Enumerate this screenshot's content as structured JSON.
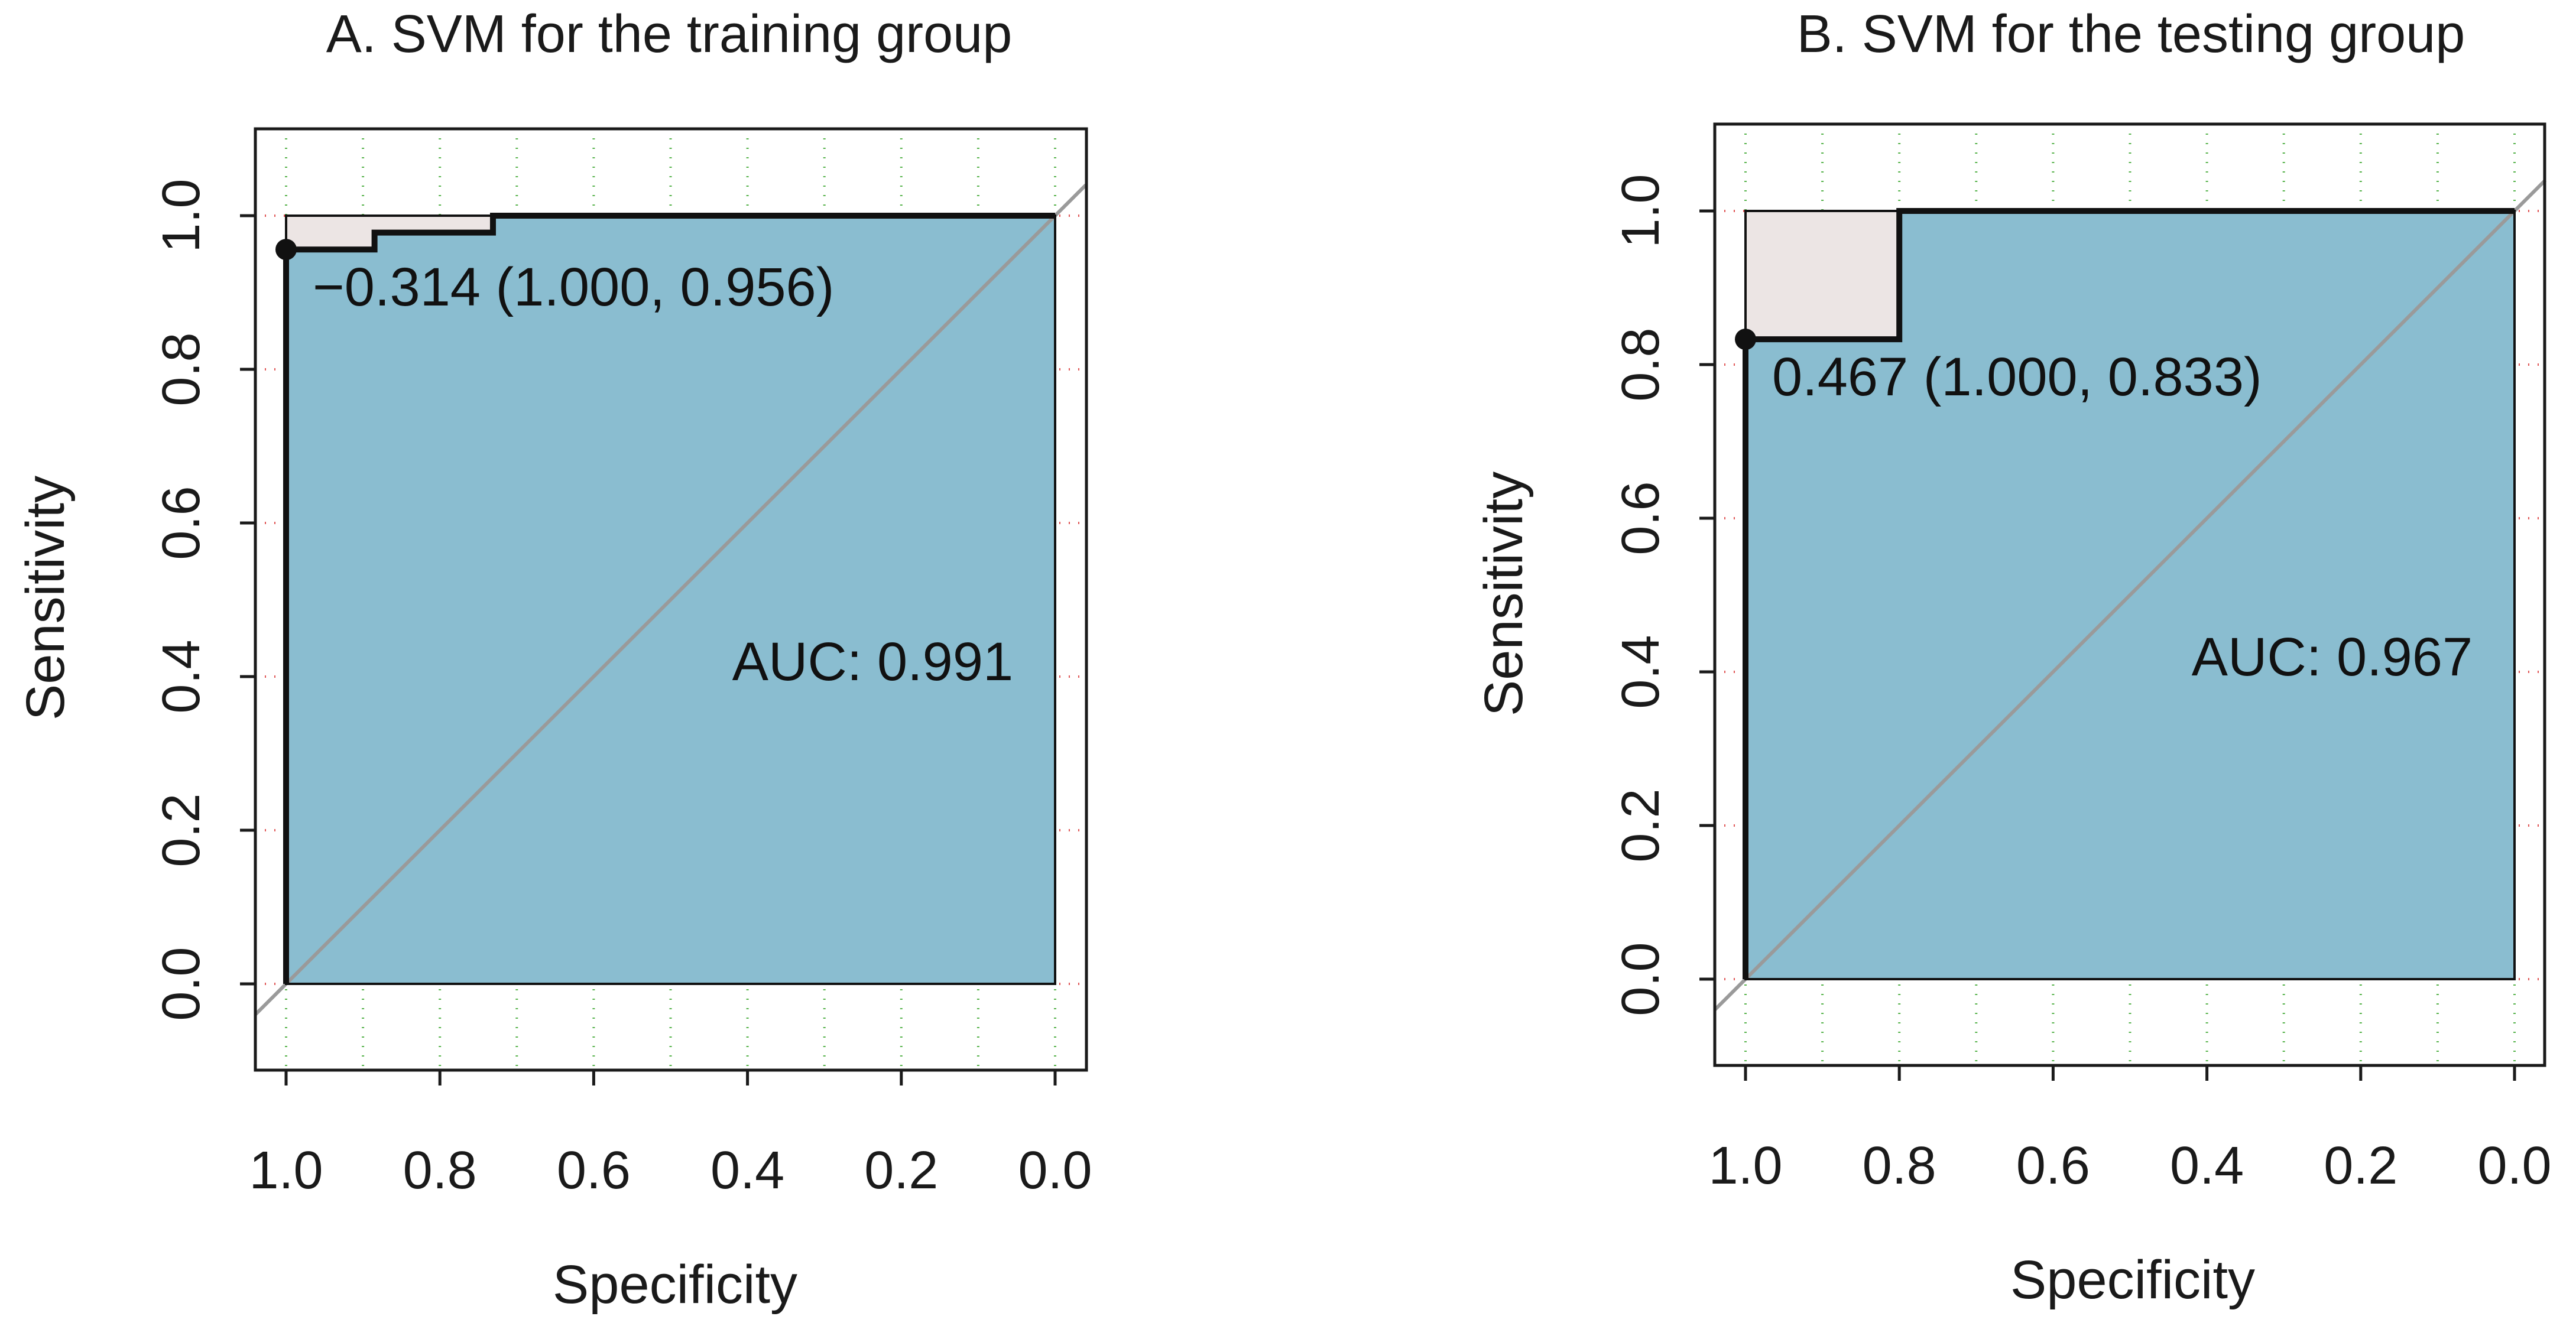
{
  "chart_data": [
    {
      "type": "roc",
      "title": "A. SVM for the training group",
      "xlabel": "Specificity",
      "ylabel": "Sensitivity",
      "xlim": [
        1.0,
        0.0
      ],
      "ylim": [
        0.0,
        1.0
      ],
      "x_reversed": true,
      "xticks": [
        "1.0",
        "0.8",
        "0.6",
        "0.4",
        "0.2",
        "0.0"
      ],
      "yticks": [
        "0.0",
        "0.2",
        "0.4",
        "0.6",
        "0.8",
        "1.0"
      ],
      "grid": true,
      "roc_curve": {
        "specificity": [
          1.0,
          1.0,
          0.885,
          0.885,
          0.731,
          0.731,
          0.0
        ],
        "sensitivity": [
          0.0,
          0.956,
          0.956,
          0.978,
          0.978,
          1.0,
          1.0
        ]
      },
      "auc": 0.991,
      "auc_label": "AUC: 0.991",
      "best_threshold": {
        "threshold": -0.314,
        "specificity": 1.0,
        "sensitivity": 0.956
      },
      "threshold_label": "−0.314 (1.000, 0.956)",
      "colors": {
        "auc_fill": "#8abdd0",
        "pauc_fill": "#ece5e4",
        "curve": "#111111",
        "diagonal": "#9a9a9a",
        "grid_x": "#55b24a",
        "grid_y": "#e05555"
      }
    },
    {
      "type": "roc",
      "title": "B. SVM for the testing group",
      "xlabel": "Specificity",
      "ylabel": "Sensitivity",
      "xlim": [
        1.0,
        0.0
      ],
      "ylim": [
        0.0,
        1.0
      ],
      "x_reversed": true,
      "xticks": [
        "1.0",
        "0.8",
        "0.6",
        "0.4",
        "0.2",
        "0.0"
      ],
      "yticks": [
        "0.0",
        "0.2",
        "0.4",
        "0.6",
        "0.8",
        "1.0"
      ],
      "grid": true,
      "roc_curve": {
        "specificity": [
          1.0,
          1.0,
          0.8,
          0.8,
          0.0
        ],
        "sensitivity": [
          0.0,
          0.833,
          0.833,
          1.0,
          1.0
        ]
      },
      "auc": 0.967,
      "auc_label": "AUC: 0.967",
      "best_threshold": {
        "threshold": 0.467,
        "specificity": 1.0,
        "sensitivity": 0.833
      },
      "threshold_label": "0.467 (1.000, 0.833)",
      "colors": {
        "auc_fill": "#8abdd0",
        "pauc_fill": "#ece5e4",
        "curve": "#111111",
        "diagonal": "#9a9a9a",
        "grid_x": "#55b24a",
        "grid_y": "#e05555"
      }
    }
  ]
}
